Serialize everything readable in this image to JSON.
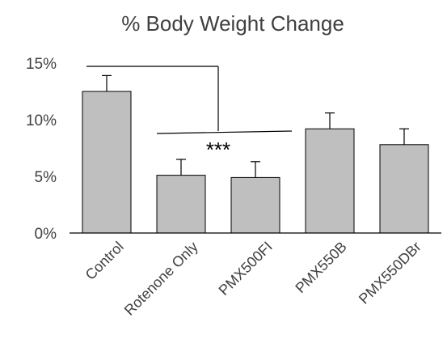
{
  "chart_data": {
    "type": "bar",
    "title": "% Body Weight Change",
    "xlabel": "",
    "ylabel": "",
    "categories": [
      "Control",
      "Rotenone Only",
      "PMX500FI",
      "PMX550B",
      "PMX550DBr"
    ],
    "values": [
      12.5,
      5.1,
      4.9,
      9.2,
      7.8
    ],
    "error_plus": [
      1.4,
      1.4,
      1.4,
      1.4,
      1.4
    ],
    "ylim": [
      0,
      15
    ],
    "yticks": [
      0,
      5,
      10,
      15
    ],
    "ytick_labels": [
      "0%",
      "5%",
      "10%",
      "15%"
    ],
    "grid": false,
    "legend": "none",
    "significance": {
      "label": "***",
      "from": "Control",
      "to": [
        "Rotenone Only",
        "PMX500FI"
      ]
    },
    "colors": {
      "bar_fill": "#bfbfbf",
      "bar_stroke": "#000000",
      "axis": "#000000",
      "text": "#404040"
    }
  }
}
